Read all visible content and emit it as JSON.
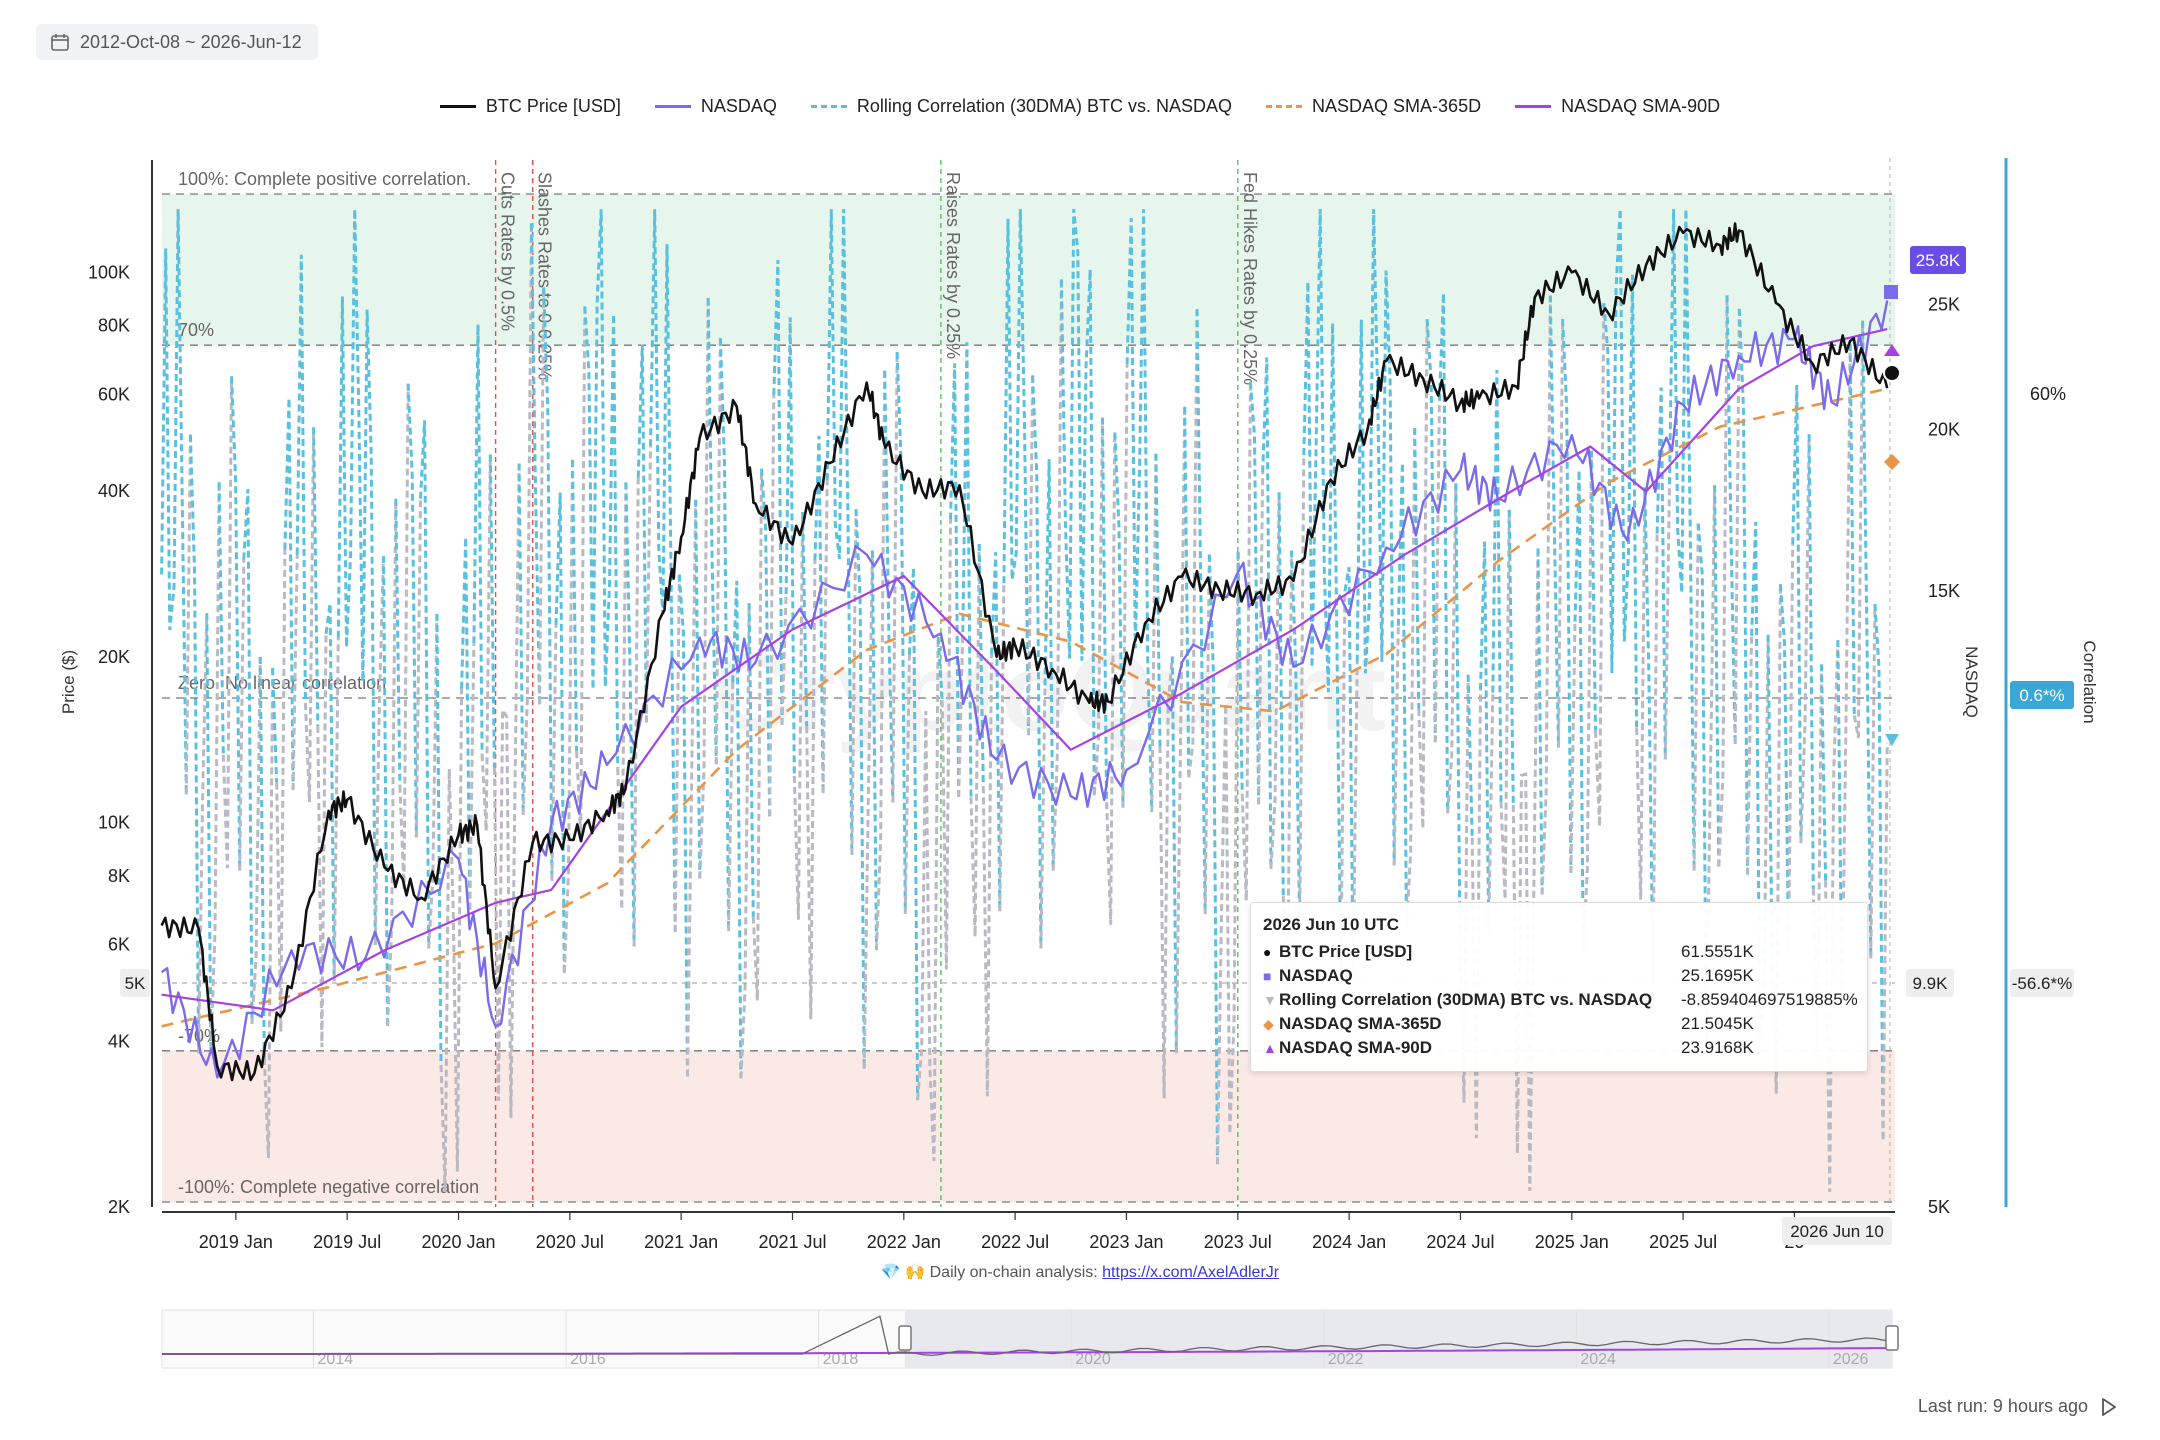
{
  "date_range": "2012-Oct-08 ~ 2026-Jun-12",
  "legend": [
    {
      "label": "BTC Price [USD]",
      "color": "#111111",
      "dash": "solid"
    },
    {
      "label": "NASDAQ",
      "color": "#7b6bea",
      "dash": "solid"
    },
    {
      "label": "Rolling Correlation (30DMA) BTC vs. NASDAQ",
      "color": "#5bc0de",
      "dash": "dashed"
    },
    {
      "label": "NASDAQ SMA-365D",
      "color": "#e89548",
      "dash": "dashed"
    },
    {
      "label": "NASDAQ SMA-90D",
      "color": "#a542e0",
      "dash": "solid"
    }
  ],
  "watermark": "CryptoQuant",
  "footer": {
    "prefix": "💎 🙌 Daily on-chain analysis: ",
    "link": "https://x.com/AxelAdlerJr"
  },
  "last_run": "Last run: 9 hours ago",
  "tooltip": {
    "title": "2026 Jun 10 UTC",
    "rows": [
      {
        "name": "BTC Price [USD]",
        "value": "61.5551K",
        "marker": "●",
        "color": "#111111"
      },
      {
        "name": "NASDAQ",
        "value": "25.1695K",
        "marker": "■",
        "color": "#7b6bea"
      },
      {
        "name": "Rolling Correlation (30DMA) BTC vs. NASDAQ",
        "value": "-8.8594046975198 85%",
        "marker": "▼",
        "color": "#b9b9c3"
      },
      {
        "name": "NASDAQ SMA-365D",
        "value": "21.5045K",
        "marker": "◆",
        "color": "#e89548"
      },
      {
        "name": "NASDAQ SMA-90D",
        "value": "23.9168K",
        "marker": "▲",
        "color": "#a542e0"
      }
    ]
  },
  "chart_data": {
    "type": "line",
    "axes": {
      "left": {
        "label": "Price ($)",
        "scale": "log",
        "range": [
          2000,
          160000
        ],
        "ticks": [
          "2K",
          "4K",
          "6K",
          "8K",
          "10K",
          "20K",
          "40K",
          "60K",
          "80K",
          "100K"
        ]
      },
      "right": {
        "label": "NASDAQ",
        "scale": "log",
        "range": [
          5000,
          30000
        ],
        "ticks": [
          "5K",
          "15K",
          "20K",
          "25K"
        ]
      },
      "far_right": {
        "label": "Correlation",
        "range": [
          -1,
          1
        ],
        "ticks": [
          "60%"
        ]
      },
      "x": {
        "ticks": [
          "2019 Jan",
          "2019 Jul",
          "2020 Jan",
          "2020 Jul",
          "2021 Jan",
          "2021 Jul",
          "2022 Jan",
          "2022 Jul",
          "2023 Jan",
          "2023 Jul",
          "2024 Jan",
          "2024 Jul",
          "2025 Jan",
          "2025 Jul",
          "20"
        ]
      }
    },
    "zones": [
      {
        "label": "100%: Complete positive correlation.",
        "value": 1.0
      },
      {
        "label": "70%",
        "value": 0.7
      },
      {
        "label": "Zero. No linear correlation",
        "value": 0.0
      },
      {
        "label": "-70%",
        "value": -0.7
      },
      {
        "label": "-100%: Complete negative correlation",
        "value": -1.0
      }
    ],
    "events": [
      {
        "date": "2020-03",
        "label": "Cuts Rates by 0.5%",
        "color": "#e05050"
      },
      {
        "date": "2020-05",
        "label": "Slashes Rates to 0-0.25%",
        "color": "#e05050"
      },
      {
        "date": "2022-03",
        "label": "Raises Rates by 0.25%",
        "color": "#5cbf5c"
      },
      {
        "date": "2023-07",
        "label": "Fed Hikes Rates by 0.25%",
        "color": "#5cbf5c"
      }
    ],
    "series": [
      {
        "name": "BTC Price [USD]",
        "axis": "left",
        "x": [
          "2018-09",
          "2018-11",
          "2018-12",
          "2019-02",
          "2019-04",
          "2019-06",
          "2019-07",
          "2019-09",
          "2019-11",
          "2020-01",
          "2020-02",
          "2020-03",
          "2020-05",
          "2020-07",
          "2020-09",
          "2020-10",
          "2020-12",
          "2021-01",
          "2021-02",
          "2021-04",
          "2021-05",
          "2021-07",
          "2021-09",
          "2021-11",
          "2021-12",
          "2022-02",
          "2022-04",
          "2022-06",
          "2022-07",
          "2022-09",
          "2022-11",
          "2022-12",
          "2023-02",
          "2023-04",
          "2023-06",
          "2023-08",
          "2023-10",
          "2023-12",
          "2024-02",
          "2024-03",
          "2024-05",
          "2024-07",
          "2024-08",
          "2024-10",
          "2024-11",
          "2025-01",
          "2025-03",
          "2025-05",
          "2025-07",
          "2025-09",
          "2025-10",
          "2025-12",
          "2026-02",
          "2026-04",
          "2026-06"
        ],
        "values": [
          6500,
          6400,
          3600,
          3500,
          5000,
          10500,
          11000,
          8300,
          7300,
          9500,
          9900,
          5000,
          9200,
          9300,
          10500,
          11500,
          24000,
          33000,
          50000,
          57000,
          38000,
          32000,
          45000,
          63000,
          48000,
          40000,
          41000,
          20000,
          21000,
          19000,
          16500,
          16600,
          23000,
          28000,
          26500,
          26000,
          27500,
          42000,
          52000,
          69000,
          64000,
          58000,
          59000,
          62000,
          90000,
          100000,
          84000,
          103000,
          118000,
          112000,
          119000,
          88000,
          68000,
          75000,
          61555
        ]
      },
      {
        "name": "NASDAQ",
        "axis": "right",
        "x": [
          "2018-09",
          "2018-12",
          "2019-04",
          "2019-08",
          "2020-01",
          "2020-03",
          "2020-06",
          "2020-09",
          "2021-02",
          "2021-05",
          "2021-11",
          "2022-03",
          "2022-06",
          "2022-10",
          "2023-01",
          "2023-07",
          "2023-10",
          "2024-03",
          "2024-07",
          "2024-09",
          "2025-01",
          "2025-04",
          "2025-07",
          "2025-10",
          "2026-01",
          "2026-03",
          "2026-06"
        ],
        "values": [
          7600,
          6300,
          7900,
          7800,
          9300,
          6900,
          9900,
          11000,
          13800,
          13200,
          16000,
          13900,
          11100,
          10400,
          10900,
          15500,
          13100,
          16200,
          18600,
          17700,
          19800,
          16400,
          20900,
          22800,
          23500,
          21000,
          25170
        ]
      },
      {
        "name": "NASDAQ SMA-365D",
        "axis": "right",
        "x": [
          "2018-09",
          "2019-06",
          "2020-03",
          "2020-09",
          "2021-04",
          "2021-11",
          "2022-04",
          "2022-10",
          "2023-04",
          "2023-09",
          "2024-03",
          "2024-09",
          "2025-03",
          "2025-09",
          "2026-06"
        ],
        "values": [
          6900,
          7400,
          8000,
          8900,
          11300,
          13500,
          14400,
          13700,
          12300,
          12100,
          13400,
          15800,
          18200,
          20100,
          21505
        ]
      },
      {
        "name": "NASDAQ SMA-90D",
        "axis": "right",
        "x": [
          "2018-09",
          "2019-03",
          "2019-09",
          "2020-03",
          "2020-06",
          "2021-01",
          "2021-07",
          "2022-01",
          "2022-06",
          "2022-10",
          "2023-04",
          "2023-10",
          "2024-04",
          "2024-10",
          "2025-02",
          "2025-05",
          "2025-10",
          "2026-02",
          "2026-06"
        ],
        "values": [
          7300,
          7100,
          7900,
          8600,
          8800,
          12200,
          14000,
          15400,
          13000,
          11300,
          12500,
          14000,
          16000,
          18000,
          19400,
          17900,
          21500,
          23200,
          23917
        ]
      },
      {
        "name": "Rolling Correlation (30DMA) BTC vs. NASDAQ",
        "axis": "far_right",
        "x": [
          "2018-09",
          "2018-12",
          "2019-03",
          "2019-07",
          "2019-11",
          "2020-03",
          "2020-08",
          "2021-01",
          "2021-06",
          "2021-12",
          "2022-06",
          "2022-12",
          "2023-06",
          "2023-12",
          "2024-06",
          "2024-12",
          "2025-06",
          "2025-12",
          "2026-06"
        ],
        "values": [
          0.7,
          -0.6,
          0.9,
          -0.8,
          0.5,
          0.9,
          -0.2,
          0.9,
          -0.7,
          0.9,
          0.9,
          -0.6,
          0.7,
          0.8,
          -0.8,
          0.9,
          0.7,
          -0.5,
          -0.0886
        ]
      }
    ],
    "current_values": {
      "btc_axis_hover": "5K",
      "nasdaq_last": "25.8K",
      "nasdaq_hover": "9.9K",
      "correlation_last": "0.6*%",
      "correlation_hover": "-56.6*%",
      "crosshair_date": "2026 Jun 10"
    },
    "navigator_ticks": [
      "2014",
      "2016",
      "2018",
      "2020",
      "2022",
      "2024",
      "2026"
    ]
  }
}
